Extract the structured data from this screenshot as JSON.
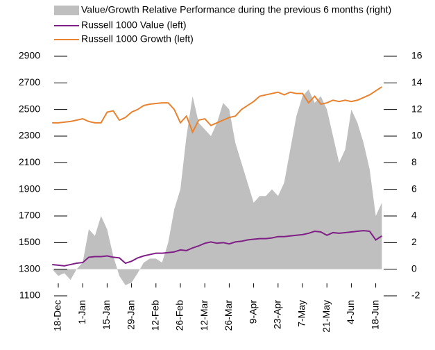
{
  "chart_data": {
    "type": "line",
    "categories": [
      null,
      "18-Dec",
      null,
      null,
      null,
      "1-Jan",
      null,
      null,
      null,
      "15-Jan",
      null,
      null,
      null,
      "29-Jan",
      null,
      null,
      null,
      "12-Feb",
      null,
      null,
      null,
      "26-Feb",
      null,
      null,
      null,
      "12-Mar",
      null,
      null,
      null,
      "26-Mar",
      null,
      null,
      null,
      "9-Apr",
      null,
      null,
      null,
      "23-Apr",
      null,
      null,
      null,
      "7-May",
      null,
      null,
      null,
      "21-May",
      null,
      null,
      null,
      "4-Jun",
      null,
      null,
      null,
      "18-Jun",
      null
    ],
    "series": [
      {
        "name": "Value/Growth Relative Performance during the previous 6 months (right)",
        "type": "area",
        "axis": "y2",
        "color": "#bfbfbf",
        "values": [
          0,
          -0.5,
          -0.3,
          -0.8,
          0,
          0.5,
          3,
          2.5,
          4,
          3,
          1,
          -0.5,
          -1.2,
          -1,
          -0.3,
          0.5,
          0.8,
          0.8,
          0.5,
          2,
          4.5,
          6,
          10,
          13,
          11,
          10.5,
          10,
          11,
          12.5,
          12,
          9.5,
          8,
          6.5,
          5,
          5.5,
          5.5,
          6,
          5.5,
          6.5,
          9,
          11.5,
          13,
          13.5,
          12.5,
          13,
          12,
          10,
          8,
          9,
          12,
          11,
          9.5,
          7.5,
          4,
          5
        ]
      },
      {
        "name": "Russell 1000 Value (left)",
        "type": "line",
        "color": "#7f1f86",
        "values": [
          1335,
          1330,
          1325,
          1335,
          1345,
          1350,
          1390,
          1395,
          1395,
          1400,
          1390,
          1385,
          1345,
          1360,
          1385,
          1400,
          1410,
          1420,
          1420,
          1425,
          1430,
          1445,
          1440,
          1460,
          1475,
          1495,
          1505,
          1495,
          1500,
          1490,
          1505,
          1510,
          1520,
          1525,
          1530,
          1530,
          1535,
          1545,
          1545,
          1550,
          1555,
          1560,
          1570,
          1585,
          1580,
          1555,
          1575,
          1570,
          1575,
          1580,
          1585,
          1590,
          1585,
          1520,
          1550
        ]
      },
      {
        "name": "Russell 1000 Growth (left)",
        "type": "line",
        "color": "#e8822f",
        "values": [
          2400,
          2400,
          2405,
          2410,
          2420,
          2430,
          2410,
          2400,
          2400,
          2480,
          2490,
          2420,
          2440,
          2480,
          2500,
          2530,
          2540,
          2545,
          2550,
          2550,
          2500,
          2400,
          2450,
          2330,
          2420,
          2430,
          2380,
          2400,
          2420,
          2440,
          2450,
          2500,
          2530,
          2560,
          2600,
          2610,
          2620,
          2630,
          2610,
          2630,
          2620,
          2620,
          2550,
          2600,
          2540,
          2550,
          2570,
          2560,
          2570,
          2560,
          2570,
          2590,
          2610,
          2640,
          2670
        ]
      }
    ],
    "ylim": [
      1100,
      2900
    ],
    "yticks": [
      1100,
      1300,
      1500,
      1700,
      1900,
      2100,
      2300,
      2500,
      2700,
      2900
    ],
    "y2lim": [
      -2,
      16
    ],
    "y2ticks": [
      -2,
      0,
      2,
      4,
      6,
      8,
      10,
      12,
      14,
      16
    ]
  }
}
